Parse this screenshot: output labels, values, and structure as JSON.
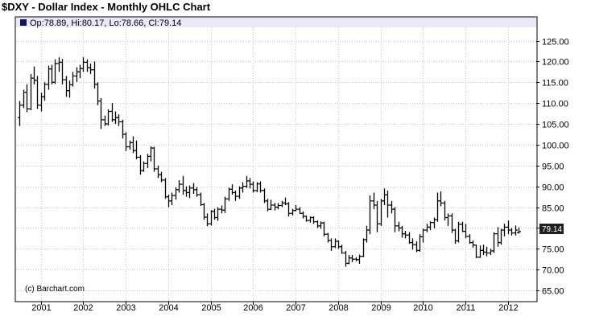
{
  "title": "$DXY - Dollar Index - Monthly OHLC Chart",
  "info_bar": {
    "text": "Op:78.89, Hi:80.17, Lo:78.66, Cl:79.14",
    "legend_color": "#101060"
  },
  "copyright": "(c) Barchart.com",
  "last_price_label": "79.14",
  "colors": {
    "bars": "#000000",
    "grid": "#c8c8c8",
    "info_band": "#e9e9f7",
    "last_price_bg": "#202020"
  },
  "chart_data": {
    "type": "ohlc",
    "title": "$DXY - Dollar Index - Monthly OHLC Chart",
    "xlabel": "",
    "ylabel": "",
    "ylim": [
      62.5,
      128
    ],
    "y_ticks": [
      65,
      70,
      75,
      80,
      85,
      90,
      95,
      100,
      105,
      110,
      115,
      120,
      125
    ],
    "y_tick_labels": [
      "65.00",
      "70.00",
      "75.00",
      "80.00",
      "85.00",
      "90.00",
      "95.00",
      "100.00",
      "105.00",
      "110.00",
      "115.00",
      "120.00",
      "125.00"
    ],
    "x_tick_labels": [
      "2001",
      "2002",
      "2003",
      "2004",
      "2005",
      "2006",
      "2007",
      "2008",
      "2009",
      "2010",
      "2011",
      "2012"
    ],
    "x_range": [
      "2000-06",
      "2012-09"
    ],
    "grid": true,
    "y_axis_side": "right",
    "last": {
      "open": 78.89,
      "high": 80.17,
      "low": 78.66,
      "close": 79.14
    },
    "series": [
      {
        "dates": [
          "2000-07",
          "2000-08",
          "2000-09",
          "2000-10",
          "2000-11",
          "2000-12",
          "2001-01",
          "2001-02",
          "2001-03",
          "2001-04",
          "2001-05",
          "2001-06",
          "2001-07",
          "2001-08",
          "2001-09",
          "2001-10",
          "2001-11",
          "2001-12",
          "2002-01",
          "2002-02",
          "2002-03",
          "2002-04",
          "2002-05",
          "2002-06",
          "2002-07",
          "2002-08",
          "2002-09",
          "2002-10",
          "2002-11",
          "2002-12",
          "2003-01",
          "2003-02",
          "2003-03",
          "2003-04",
          "2003-05",
          "2003-06",
          "2003-07",
          "2003-08",
          "2003-09",
          "2003-10",
          "2003-11",
          "2003-12",
          "2004-01",
          "2004-02",
          "2004-03",
          "2004-04",
          "2004-05",
          "2004-06",
          "2004-07",
          "2004-08",
          "2004-09",
          "2004-10",
          "2004-11",
          "2004-12",
          "2005-01",
          "2005-02",
          "2005-03",
          "2005-04",
          "2005-05",
          "2005-06",
          "2005-07",
          "2005-08",
          "2005-09",
          "2005-10",
          "2005-11",
          "2005-12",
          "2006-01",
          "2006-02",
          "2006-03",
          "2006-04",
          "2006-05",
          "2006-06",
          "2006-07",
          "2006-08",
          "2006-09",
          "2006-10",
          "2006-11",
          "2006-12",
          "2007-01",
          "2007-02",
          "2007-03",
          "2007-04",
          "2007-05",
          "2007-06",
          "2007-07",
          "2007-08",
          "2007-09",
          "2007-10",
          "2007-11",
          "2007-12",
          "2008-01",
          "2008-02",
          "2008-03",
          "2008-04",
          "2008-05",
          "2008-06",
          "2008-07",
          "2008-08",
          "2008-09",
          "2008-10",
          "2008-11",
          "2008-12",
          "2009-01",
          "2009-02",
          "2009-03",
          "2009-04",
          "2009-05",
          "2009-06",
          "2009-07",
          "2009-08",
          "2009-09",
          "2009-10",
          "2009-11",
          "2009-12",
          "2010-01",
          "2010-02",
          "2010-03",
          "2010-04",
          "2010-05",
          "2010-06",
          "2010-07",
          "2010-08",
          "2010-09",
          "2010-10",
          "2010-11",
          "2010-12",
          "2011-01",
          "2011-02",
          "2011-03",
          "2011-04",
          "2011-05",
          "2011-06",
          "2011-07",
          "2011-08",
          "2011-09",
          "2011-10",
          "2011-11",
          "2011-12",
          "2012-01",
          "2012-02",
          "2012-03",
          "2012-04"
        ],
        "ohlc": [
          [
            106.5,
            110.5,
            104.5,
            109.5
          ],
          [
            109.5,
            113.2,
            108.8,
            112.6
          ],
          [
            112.6,
            114.5,
            107.8,
            108.6
          ],
          [
            108.6,
            117.0,
            108.3,
            116.0
          ],
          [
            116.0,
            118.8,
            114.5,
            115.5
          ],
          [
            115.5,
            116.5,
            108.6,
            109.5
          ],
          [
            109.5,
            112.5,
            108.0,
            111.5
          ],
          [
            111.5,
            115.0,
            110.6,
            114.5
          ],
          [
            114.5,
            119.0,
            113.2,
            118.2
          ],
          [
            118.2,
            119.2,
            114.5,
            115.0
          ],
          [
            115.0,
            120.5,
            114.6,
            119.5
          ],
          [
            119.5,
            121.0,
            117.5,
            119.8
          ],
          [
            119.8,
            120.6,
            114.5,
            115.6
          ],
          [
            115.6,
            116.5,
            111.5,
            113.0
          ],
          [
            113.0,
            115.4,
            111.3,
            114.4
          ],
          [
            114.4,
            117.5,
            114.0,
            116.5
          ],
          [
            116.5,
            118.6,
            115.1,
            117.5
          ],
          [
            117.5,
            119.2,
            116.0,
            118.3
          ],
          [
            118.3,
            121.0,
            117.5,
            119.8
          ],
          [
            119.8,
            120.5,
            117.5,
            118.5
          ],
          [
            118.5,
            119.5,
            117.0,
            118.0
          ],
          [
            118.0,
            120.0,
            113.5,
            114.5
          ],
          [
            114.5,
            115.0,
            109.5,
            110.5
          ],
          [
            110.5,
            111.2,
            103.8,
            106.0
          ],
          [
            106.0,
            107.0,
            104.5,
            105.0
          ],
          [
            105.0,
            108.5,
            104.6,
            108.0
          ],
          [
            108.0,
            110.0,
            105.5,
            106.0
          ],
          [
            106.0,
            108.0,
            105.0,
            106.5
          ],
          [
            106.5,
            107.3,
            104.5,
            105.5
          ],
          [
            105.5,
            106.0,
            101.5,
            102.5
          ],
          [
            102.5,
            103.0,
            98.5,
            99.5
          ],
          [
            99.5,
            101.0,
            98.8,
            100.5
          ],
          [
            100.5,
            102.0,
            98.0,
            98.6
          ],
          [
            98.6,
            101.0,
            96.5,
            97.0
          ],
          [
            97.0,
            97.5,
            92.8,
            93.8
          ],
          [
            93.8,
            96.0,
            93.5,
            95.5
          ],
          [
            95.5,
            97.8,
            94.4,
            97.2
          ],
          [
            97.2,
            99.6,
            96.0,
            99.2
          ],
          [
            99.2,
            99.5,
            93.5,
            94.2
          ],
          [
            94.2,
            95.0,
            92.0,
            92.8
          ],
          [
            92.8,
            93.5,
            91.0,
            91.5
          ],
          [
            91.5,
            92.0,
            87.0,
            87.5
          ],
          [
            87.5,
            88.0,
            85.0,
            86.5
          ],
          [
            86.5,
            88.5,
            85.5,
            87.8
          ],
          [
            87.8,
            89.8,
            86.8,
            89.2
          ],
          [
            89.2,
            91.5,
            88.5,
            90.5
          ],
          [
            90.5,
            92.5,
            88.0,
            89.0
          ],
          [
            89.0,
            90.0,
            87.5,
            88.5
          ],
          [
            88.5,
            90.2,
            87.2,
            89.6
          ],
          [
            89.6,
            90.8,
            88.2,
            89.2
          ],
          [
            89.2,
            89.8,
            87.5,
            88.0
          ],
          [
            88.0,
            88.5,
            85.3,
            85.6
          ],
          [
            85.6,
            86.0,
            82.0,
            82.6
          ],
          [
            82.6,
            83.5,
            80.4,
            81.0
          ],
          [
            81.0,
            84.3,
            80.6,
            84.0
          ],
          [
            84.0,
            84.6,
            82.0,
            82.5
          ],
          [
            82.5,
            85.0,
            81.7,
            84.5
          ],
          [
            84.5,
            85.4,
            83.5,
            84.3
          ],
          [
            84.3,
            87.5,
            83.6,
            87.0
          ],
          [
            87.0,
            89.7,
            86.5,
            89.3
          ],
          [
            89.3,
            90.5,
            88.0,
            88.5
          ],
          [
            88.5,
            89.0,
            86.5,
            87.6
          ],
          [
            87.6,
            90.0,
            87.0,
            89.6
          ],
          [
            89.6,
            91.0,
            88.5,
            90.0
          ],
          [
            90.0,
            92.5,
            89.6,
            91.3
          ],
          [
            91.3,
            92.0,
            89.5,
            90.5
          ],
          [
            90.5,
            91.2,
            88.5,
            89.0
          ],
          [
            89.0,
            91.0,
            88.6,
            90.6
          ],
          [
            90.6,
            91.2,
            88.5,
            89.0
          ],
          [
            89.0,
            89.5,
            86.0,
            86.5
          ],
          [
            86.5,
            87.0,
            84.0,
            84.5
          ],
          [
            84.5,
            86.8,
            84.3,
            85.5
          ],
          [
            85.5,
            86.0,
            84.2,
            85.0
          ],
          [
            85.0,
            86.0,
            84.5,
            85.4
          ],
          [
            85.4,
            86.5,
            85.0,
            86.0
          ],
          [
            86.0,
            87.3,
            85.5,
            85.8
          ],
          [
            85.8,
            86.2,
            82.8,
            83.5
          ],
          [
            83.5,
            84.6,
            83.0,
            84.2
          ],
          [
            84.2,
            85.5,
            84.0,
            84.5
          ],
          [
            84.5,
            85.0,
            83.4,
            83.5
          ],
          [
            83.5,
            84.0,
            82.3,
            82.8
          ],
          [
            82.8,
            83.0,
            81.5,
            81.8
          ],
          [
            81.8,
            82.8,
            81.3,
            82.5
          ],
          [
            82.5,
            82.8,
            81.0,
            81.5
          ],
          [
            81.5,
            81.8,
            80.0,
            80.5
          ],
          [
            80.5,
            81.6,
            79.8,
            81.2
          ],
          [
            81.2,
            81.5,
            78.0,
            78.5
          ],
          [
            78.5,
            78.8,
            76.5,
            77.0
          ],
          [
            77.0,
            77.5,
            74.5,
            75.5
          ],
          [
            75.5,
            77.5,
            75.2,
            76.8
          ],
          [
            76.8,
            77.0,
            75.0,
            75.5
          ],
          [
            75.5,
            76.0,
            73.8,
            74.0
          ],
          [
            74.0,
            74.5,
            70.7,
            71.5
          ],
          [
            71.5,
            73.5,
            71.3,
            72.8
          ],
          [
            72.8,
            73.5,
            71.8,
            72.5
          ],
          [
            72.5,
            73.0,
            72.0,
            72.4
          ],
          [
            72.4,
            73.6,
            71.4,
            73.2
          ],
          [
            73.2,
            77.5,
            73.0,
            77.2
          ],
          [
            77.2,
            80.5,
            76.5,
            79.5
          ],
          [
            79.5,
            87.8,
            78.5,
            86.5
          ],
          [
            86.5,
            88.5,
            84.5,
            85.5
          ],
          [
            85.5,
            86.5,
            79.0,
            81.0
          ],
          [
            81.0,
            87.0,
            80.5,
            86.5
          ],
          [
            86.5,
            89.5,
            85.5,
            88.0
          ],
          [
            88.0,
            89.0,
            82.5,
            85.5
          ],
          [
            85.5,
            86.5,
            83.5,
            84.5
          ],
          [
            84.5,
            85.0,
            79.0,
            80.5
          ],
          [
            80.5,
            81.5,
            79.2,
            80.0
          ],
          [
            80.0,
            80.5,
            77.7,
            78.6
          ],
          [
            78.6,
            79.3,
            77.5,
            78.3
          ],
          [
            78.3,
            79.0,
            76.2,
            76.5
          ],
          [
            76.5,
            77.5,
            74.8,
            76.0
          ],
          [
            76.0,
            76.8,
            74.2,
            74.6
          ],
          [
            74.6,
            78.5,
            74.3,
            77.9
          ],
          [
            77.9,
            79.8,
            76.5,
            79.5
          ],
          [
            79.5,
            81.0,
            79.0,
            80.2
          ],
          [
            80.2,
            81.6,
            79.5,
            81.3
          ],
          [
            81.3,
            82.5,
            79.9,
            82.0
          ],
          [
            82.0,
            88.5,
            81.5,
            86.5
          ],
          [
            86.5,
            88.8,
            85.2,
            86.0
          ],
          [
            86.0,
            86.5,
            81.8,
            82.5
          ],
          [
            82.5,
            83.5,
            80.5,
            82.9
          ],
          [
            82.9,
            83.5,
            78.8,
            79.5
          ],
          [
            79.5,
            79.8,
            76.2,
            76.9
          ],
          [
            76.9,
            81.5,
            76.5,
            80.9
          ],
          [
            80.9,
            81.5,
            79.0,
            79.2
          ],
          [
            79.2,
            81.0,
            77.5,
            78.0
          ],
          [
            78.0,
            78.5,
            76.2,
            76.5
          ],
          [
            76.5,
            77.0,
            75.3,
            75.9
          ],
          [
            75.9,
            76.0,
            72.8,
            73.0
          ],
          [
            73.0,
            75.8,
            72.8,
            74.6
          ],
          [
            74.6,
            76.0,
            73.5,
            74.2
          ],
          [
            74.2,
            75.5,
            73.2,
            74.0
          ],
          [
            74.0,
            75.0,
            73.5,
            74.5
          ],
          [
            74.5,
            79.0,
            74.0,
            78.6
          ],
          [
            78.6,
            80.2,
            75.5,
            76.5
          ],
          [
            76.5,
            79.8,
            76.0,
            79.5
          ],
          [
            79.5,
            81.0,
            78.0,
            80.2
          ],
          [
            80.2,
            81.8,
            78.5,
            79.5
          ],
          [
            79.5,
            80.0,
            78.2,
            78.8
          ],
          [
            78.8,
            80.6,
            78.2,
            79.5
          ],
          [
            78.89,
            80.17,
            78.66,
            79.14
          ]
        ]
      }
    ]
  }
}
